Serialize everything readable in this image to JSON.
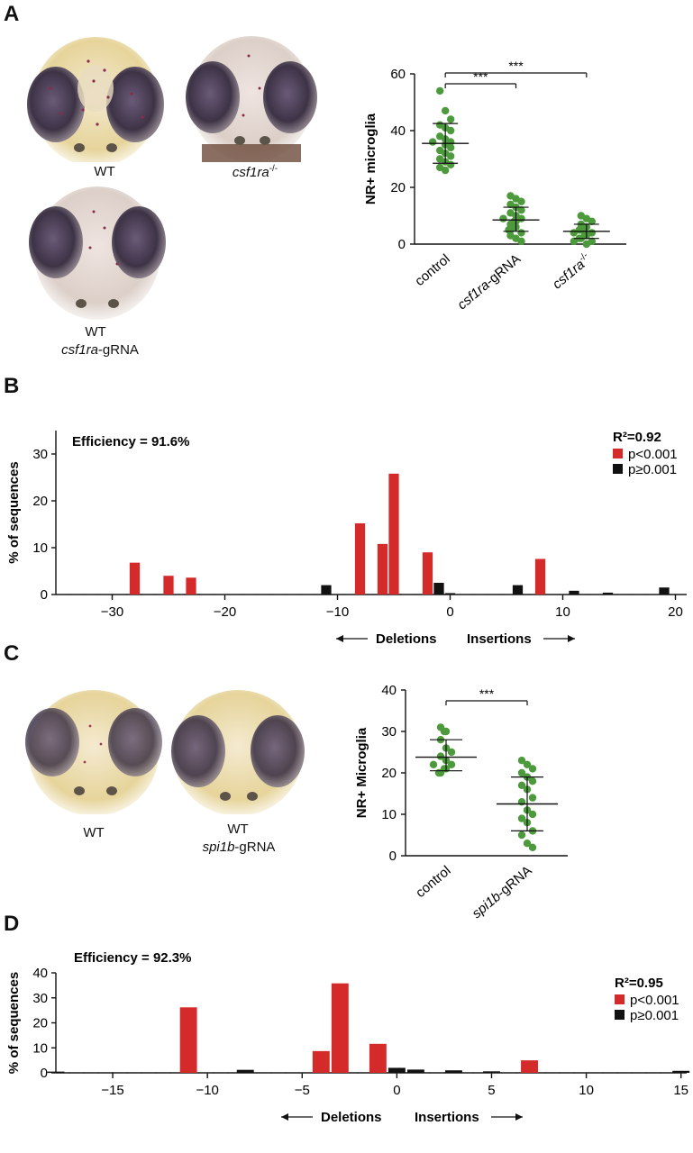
{
  "panels": {
    "a": "A",
    "b": "B",
    "c": "C",
    "d": "D"
  },
  "panel_a": {
    "photo_labels": {
      "wt": "WT",
      "mutant": "csf1ra",
      "mutant_sup": "-/-",
      "gRNA_line1": "WT",
      "gRNA_gene": "csf1ra",
      "gRNA_suffix": "-gRNA"
    },
    "sig": [
      "***",
      "***"
    ]
  },
  "panel_c": {
    "photo_labels": {
      "wt": "WT",
      "gRNA_line1": "WT",
      "gRNA_gene": "spi1b",
      "gRNA_suffix": "-gRNA"
    },
    "sig": [
      "***"
    ]
  },
  "panel_b": {
    "efficiency": "Efficiency = 91.6%",
    "r2": "R²=0.92",
    "deletions": "Deletions",
    "insertions": "Insertions"
  },
  "panel_d": {
    "efficiency": "Efficiency = 92.3%",
    "r2": "R²=0.95",
    "deletions": "Deletions",
    "insertions": "Insertions"
  },
  "colors": {
    "green": "#4c9a3c",
    "red": "#d42a2a",
    "black": "#111111"
  },
  "chart_data": [
    {
      "id": "A",
      "type": "scatter",
      "ylabel": "NR+ microglia",
      "ylim": [
        0,
        60
      ],
      "yticks": [
        0,
        20,
        40,
        60
      ],
      "categories": [
        {
          "label": "control",
          "italic": false
        },
        {
          "label": "csf1ra-gRNA",
          "italic_part": "csf1ra",
          "rest": "-gRNA"
        },
        {
          "label": "csf1ra-/-",
          "italic_part": "csf1ra",
          "sup": "-/-"
        }
      ],
      "series": [
        {
          "values": [
            54,
            47,
            44,
            42,
            41,
            40,
            38,
            37,
            36,
            36,
            35,
            34,
            33,
            32,
            31,
            30,
            29,
            28,
            27,
            26
          ],
          "mean": 35.5,
          "sd": [
            28.5,
            42.5
          ]
        },
        {
          "values": [
            17,
            16,
            15,
            14,
            13,
            12,
            11,
            10,
            9,
            9,
            8,
            8,
            7,
            6,
            6,
            5,
            5,
            4,
            3,
            2,
            1
          ],
          "mean": 8.5,
          "sd": [
            4.5,
            13
          ]
        },
        {
          "values": [
            10,
            9,
            8,
            7,
            6,
            6,
            5,
            5,
            4,
            4,
            3,
            3,
            2,
            2,
            1,
            1,
            0
          ],
          "mean": 4.5,
          "sd": [
            2,
            7
          ]
        }
      ]
    },
    {
      "id": "B",
      "type": "bar",
      "ylabel": "% of sequences",
      "ylim": [
        0,
        35
      ],
      "yticks": [
        0,
        10,
        20,
        30
      ],
      "xlim": [
        -35,
        21
      ],
      "xticks": [
        -30,
        -20,
        -10,
        0,
        10,
        20
      ],
      "legend": [
        "p<0.001",
        "p≥0.001"
      ],
      "bars": [
        {
          "x": -28,
          "y": 6.8,
          "sig": true
        },
        {
          "x": -25,
          "y": 4.0,
          "sig": true
        },
        {
          "x": -23,
          "y": 3.6,
          "sig": true
        },
        {
          "x": -11,
          "y": 2.0,
          "sig": false
        },
        {
          "x": -8,
          "y": 15.2,
          "sig": true
        },
        {
          "x": -6,
          "y": 10.8,
          "sig": true
        },
        {
          "x": -5,
          "y": 25.8,
          "sig": true
        },
        {
          "x": -2,
          "y": 9.0,
          "sig": true
        },
        {
          "x": -1,
          "y": 2.5,
          "sig": false
        },
        {
          "x": 0,
          "y": 0.3,
          "sig": false
        },
        {
          "x": 6,
          "y": 2.0,
          "sig": false
        },
        {
          "x": 8,
          "y": 7.6,
          "sig": true
        },
        {
          "x": 11,
          "y": 0.8,
          "sig": false
        },
        {
          "x": 14,
          "y": 0.4,
          "sig": false
        },
        {
          "x": 19,
          "y": 1.5,
          "sig": false
        }
      ]
    },
    {
      "id": "C",
      "type": "scatter",
      "ylabel": "NR+ Microglia",
      "ylim": [
        0,
        40
      ],
      "yticks": [
        0,
        10,
        20,
        30,
        40
      ],
      "categories": [
        {
          "label": "control",
          "italic": false
        },
        {
          "label": "spi1b-gRNA",
          "italic_part": "spi1b",
          "rest": "-gRNA"
        }
      ],
      "series": [
        {
          "values": [
            31,
            30,
            30,
            28,
            26,
            25,
            24,
            23,
            22,
            22,
            21,
            21,
            20,
            20
          ],
          "mean": 23.8,
          "sd": [
            20.5,
            28
          ]
        },
        {
          "values": [
            23,
            22,
            21,
            20,
            19,
            18,
            17,
            16,
            14,
            13,
            11,
            10,
            9,
            8,
            6,
            5,
            3,
            2
          ],
          "mean": 12.5,
          "sd": [
            6,
            19
          ]
        }
      ]
    },
    {
      "id": "D",
      "type": "bar",
      "ylabel": "% of sequences",
      "ylim": [
        0,
        40
      ],
      "yticks": [
        0,
        10,
        20,
        30,
        40
      ],
      "xlim": [
        -18,
        15.3
      ],
      "xticks": [
        -15,
        -10,
        -5,
        0,
        5,
        10,
        15
      ],
      "legend": [
        "p<0.001",
        "p≥0.001"
      ],
      "bars": [
        {
          "x": -18,
          "y": 0.5,
          "sig": false
        },
        {
          "x": -11,
          "y": 26.2,
          "sig": true
        },
        {
          "x": -8,
          "y": 1.2,
          "sig": false
        },
        {
          "x": -4,
          "y": 8.7,
          "sig": true
        },
        {
          "x": -3,
          "y": 35.8,
          "sig": true
        },
        {
          "x": -1,
          "y": 11.6,
          "sig": true
        },
        {
          "x": 0,
          "y": 2.0,
          "sig": false
        },
        {
          "x": 1,
          "y": 1.3,
          "sig": false
        },
        {
          "x": 3,
          "y": 1.0,
          "sig": false
        },
        {
          "x": 5,
          "y": 0.6,
          "sig": false
        },
        {
          "x": 7,
          "y": 5.0,
          "sig": true
        },
        {
          "x": 15,
          "y": 0.8,
          "sig": false
        }
      ]
    }
  ]
}
